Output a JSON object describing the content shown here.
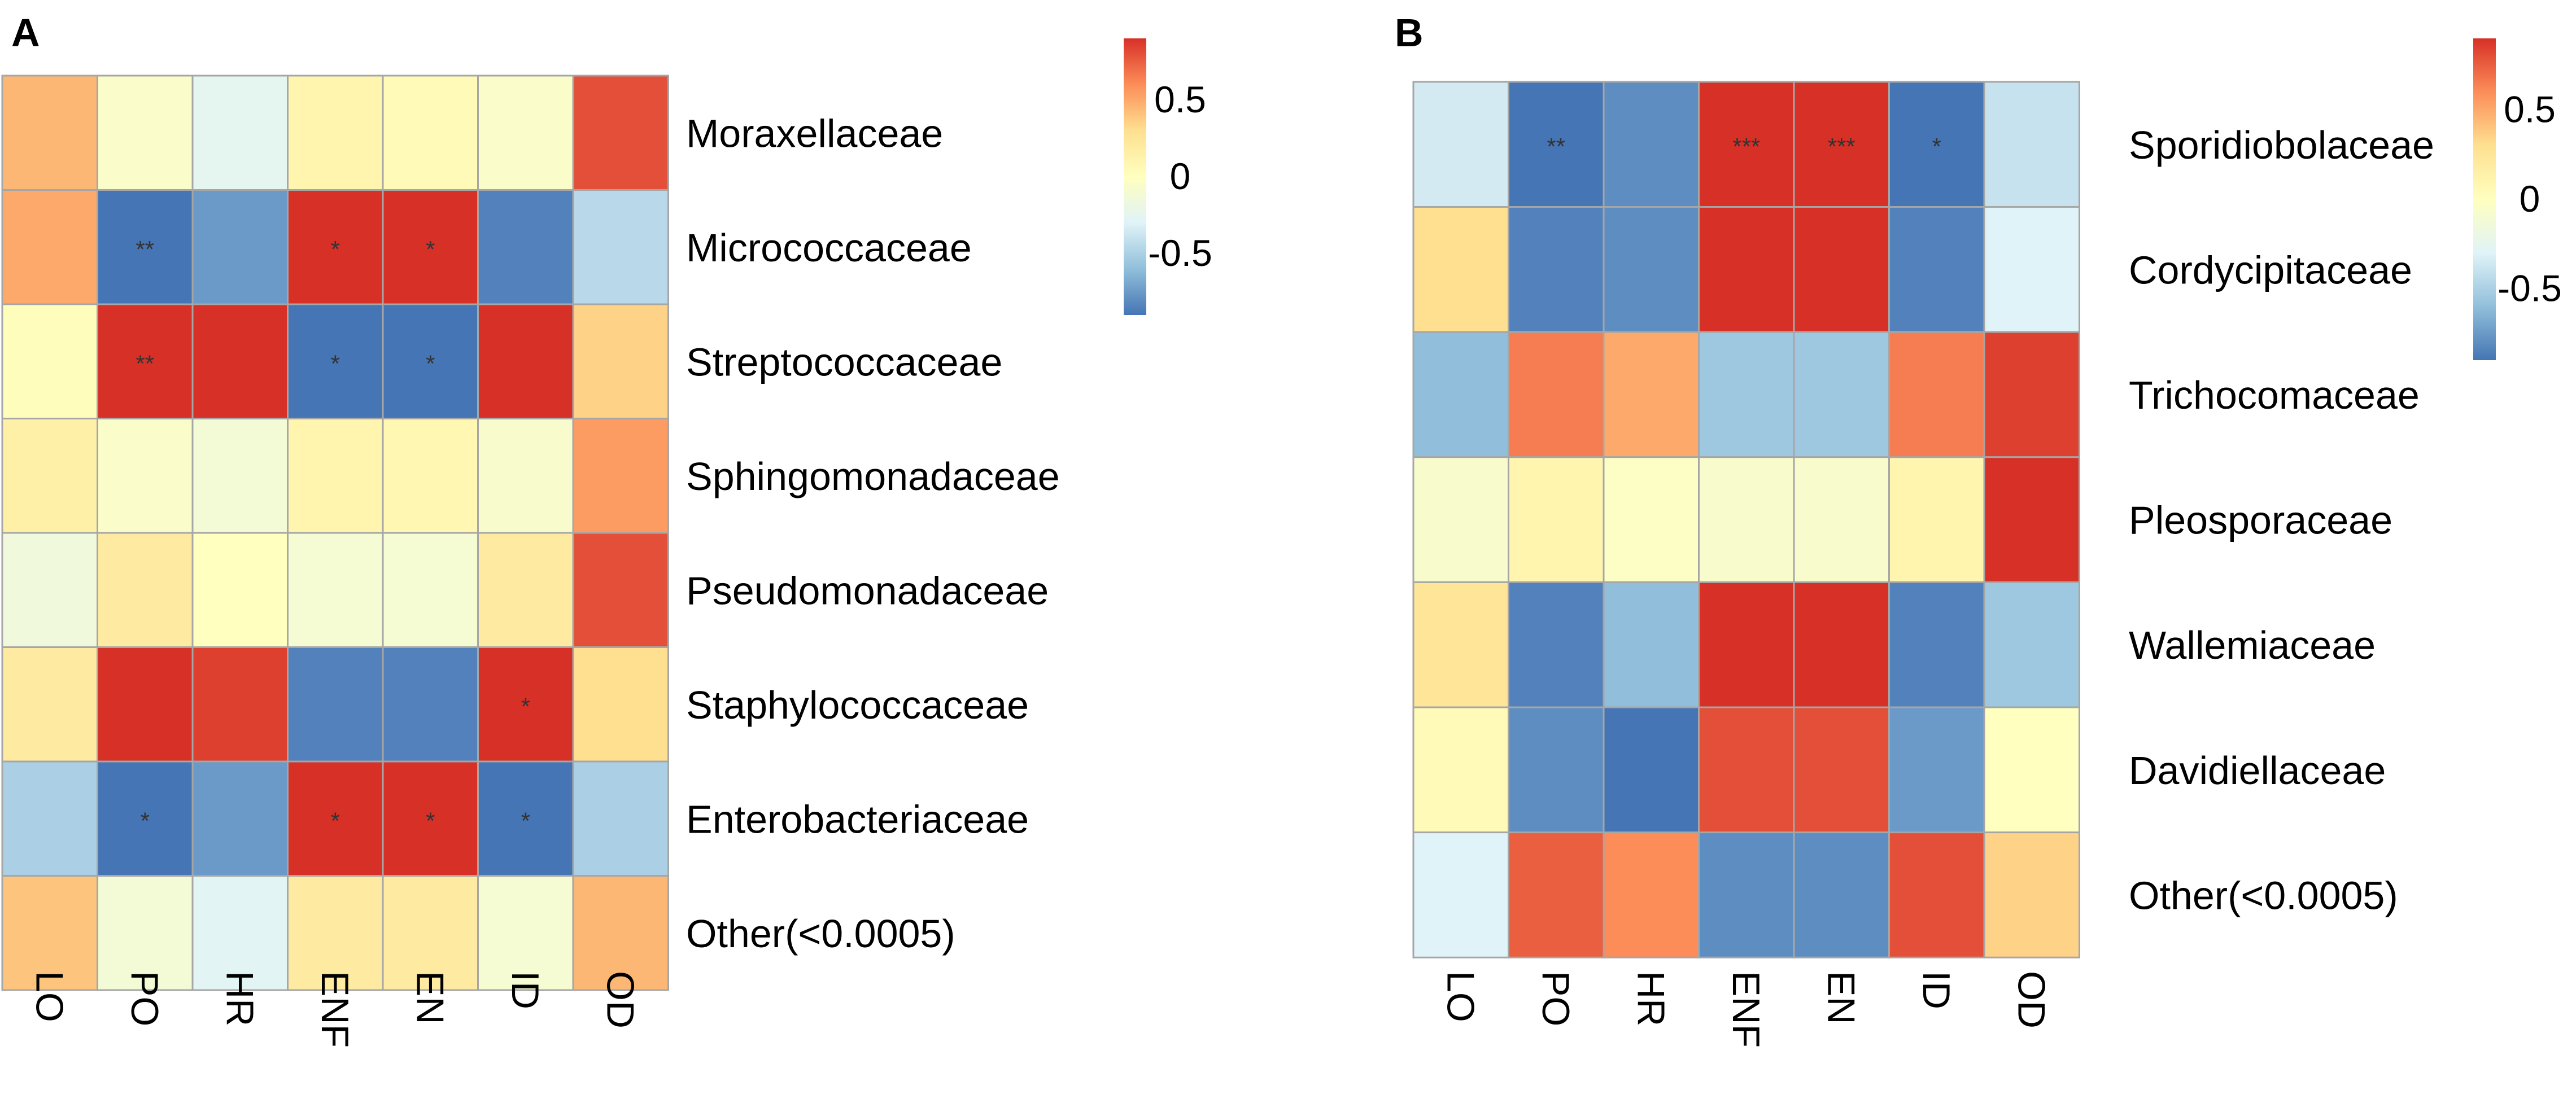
{
  "chart_data": [
    {
      "type": "heatmap",
      "panel_label": "A",
      "columns": [
        "LO",
        "PO",
        "HR",
        "ENF",
        "EN",
        "ID",
        "OD"
      ],
      "rows": [
        "Moraxellaceae",
        "Micrococcaceae",
        "Streptococcaceae",
        "Sphingomonadaceae",
        "Pseudomonadaceae",
        "Staphylococcaceae",
        "Enterobacteriaceae",
        "Other(<0.0005)"
      ],
      "values": [
        [
          0.45,
          -0.05,
          -0.25,
          0.1,
          0.05,
          -0.05,
          0.8
        ],
        [
          0.5,
          -0.9,
          -0.75,
          0.9,
          0.9,
          -0.85,
          -0.45
        ],
        [
          0.02,
          0.9,
          0.9,
          -0.9,
          -0.9,
          0.9,
          0.35
        ],
        [
          0.15,
          -0.05,
          -0.12,
          0.1,
          0.08,
          -0.07,
          0.55
        ],
        [
          -0.15,
          0.2,
          0.0,
          -0.1,
          -0.1,
          0.2,
          0.8
        ],
        [
          0.2,
          0.9,
          0.85,
          -0.85,
          -0.85,
          0.9,
          0.3
        ],
        [
          -0.5,
          -0.9,
          -0.75,
          0.9,
          0.9,
          -0.9,
          -0.5
        ],
        [
          0.4,
          -0.12,
          -0.28,
          0.2,
          0.2,
          -0.1,
          0.45
        ]
      ],
      "significance": [
        [
          "",
          "",
          "",
          "",
          "",
          "",
          ""
        ],
        [
          "",
          "**",
          "",
          "*",
          "*",
          "",
          ""
        ],
        [
          "",
          "**",
          "",
          "*",
          "*",
          "",
          ""
        ],
        [
          "",
          "",
          "",
          "",
          "",
          "",
          ""
        ],
        [
          "",
          "",
          "",
          "",
          "",
          "",
          ""
        ],
        [
          "",
          "",
          "",
          "",
          "",
          "*",
          ""
        ],
        [
          "",
          "*",
          "",
          "*",
          "*",
          "*",
          ""
        ],
        [
          "",
          "",
          "",
          "",
          "",
          "",
          ""
        ]
      ],
      "legend": {
        "range": [
          -0.9,
          0.9
        ],
        "ticks": [
          "0.5",
          "0",
          "-0.5"
        ],
        "tick_values": [
          0.5,
          0,
          -0.5
        ]
      }
    },
    {
      "type": "heatmap",
      "panel_label": "B",
      "columns": [
        "LO",
        "PO",
        "HR",
        "ENF",
        "EN",
        "ID",
        "OD"
      ],
      "rows": [
        "Sporidiobolaceae",
        "Cordycipitaceae",
        "Trichocomaceae",
        "Pleosporaceae",
        "Wallemiaceae",
        "Davidiellaceae",
        "Other(<0.0005)"
      ],
      "values": [
        [
          -0.35,
          -0.9,
          -0.8,
          0.95,
          0.95,
          -0.9,
          -0.4
        ],
        [
          0.3,
          -0.85,
          -0.8,
          0.9,
          0.9,
          -0.85,
          -0.3
        ],
        [
          -0.6,
          0.65,
          0.5,
          -0.55,
          -0.55,
          0.65,
          0.85
        ],
        [
          -0.07,
          0.1,
          -0.03,
          -0.07,
          -0.07,
          0.1,
          0.9
        ],
        [
          0.25,
          -0.85,
          -0.6,
          0.9,
          0.9,
          -0.85,
          -0.55
        ],
        [
          0.05,
          -0.8,
          -0.9,
          0.8,
          0.8,
          -0.75,
          0.0
        ],
        [
          -0.3,
          0.75,
          0.6,
          -0.8,
          -0.8,
          0.8,
          0.35
        ]
      ],
      "significance": [
        [
          "",
          "**",
          "",
          "***",
          "***",
          "*",
          ""
        ],
        [
          "",
          "",
          "",
          "",
          "",
          "",
          ""
        ],
        [
          "",
          "",
          "",
          "",
          "",
          "",
          ""
        ],
        [
          "",
          "",
          "",
          "",
          "",
          "",
          ""
        ],
        [
          "",
          "",
          "",
          "",
          "",
          "",
          ""
        ],
        [
          "",
          "",
          "",
          "",
          "",
          "",
          ""
        ],
        [
          "",
          "",
          "",
          "",
          "",
          "",
          ""
        ]
      ],
      "legend": {
        "range": [
          -0.9,
          0.9
        ],
        "ticks": [
          "0.5",
          "0",
          "-0.5"
        ],
        "tick_values": [
          0.5,
          0,
          -0.5
        ]
      }
    }
  ],
  "colors": {
    "scale": [
      "#4575b4",
      "#91bfdb",
      "#e0f3f8",
      "#ffffbf",
      "#fee090",
      "#fc8d59",
      "#d73027"
    ],
    "cell_border": "#a6a6a6",
    "text": "#000000"
  }
}
